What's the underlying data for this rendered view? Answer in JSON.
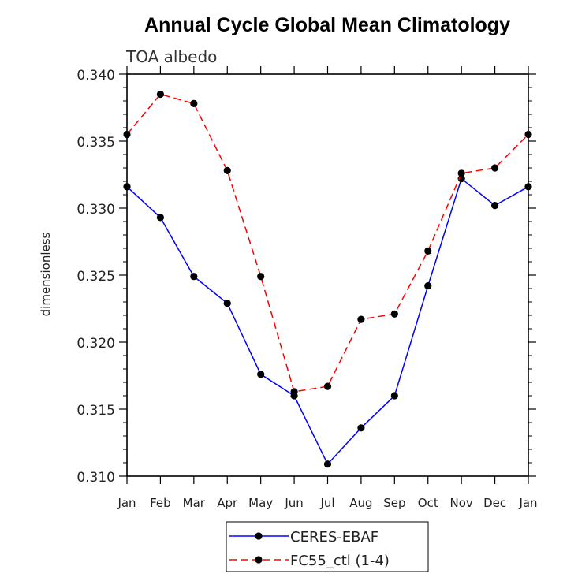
{
  "chart_data": {
    "type": "line",
    "title": "Annual Cycle Global Mean Climatology",
    "subtitle": "TOA albedo",
    "xlabel": "",
    "ylabel": "dimensionless",
    "categories": [
      "Jan",
      "Feb",
      "Mar",
      "Apr",
      "May",
      "Jun",
      "Jul",
      "Aug",
      "Sep",
      "Oct",
      "Nov",
      "Dec",
      "Jan"
    ],
    "ylim": [
      0.31,
      0.34
    ],
    "yticks": [
      "0.310",
      "0.315",
      "0.320",
      "0.325",
      "0.330",
      "0.335",
      "0.340"
    ],
    "grid": false,
    "legend_position": "bottom",
    "series": [
      {
        "name": "CERES-EBAF",
        "color": "#0000ff",
        "line_style": "solid",
        "marker": "filled-circle",
        "values": [
          0.3316,
          0.3293,
          0.3249,
          0.3229,
          0.3176,
          0.316,
          0.3109,
          0.3136,
          0.316,
          0.3242,
          0.3322,
          0.3302,
          0.3316
        ]
      },
      {
        "name": "FC55_ctl (1-4)",
        "color": "#ff0000",
        "line_style": "dashed",
        "marker": "filled-circle",
        "values": [
          0.3355,
          0.3385,
          0.3378,
          0.3328,
          0.3249,
          0.3163,
          0.3167,
          0.3217,
          0.3221,
          0.3268,
          0.3326,
          0.333,
          0.3355
        ]
      }
    ]
  }
}
